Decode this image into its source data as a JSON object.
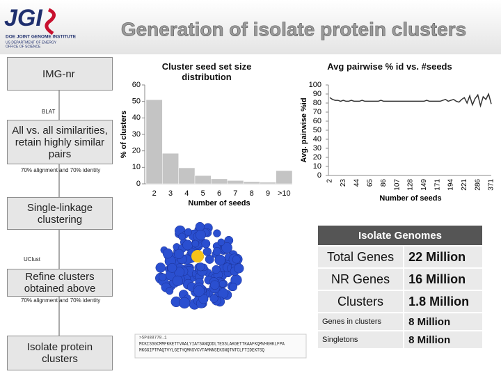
{
  "header": {
    "logo": "JGI",
    "org": "DOE JOINT GENOME INSTITUTE",
    "dept": "US DEPARTMENT OF ENERGY",
    "office": "OFFICE OF SCIENCE",
    "title": "Generation of isolate protein clusters"
  },
  "flow": {
    "input": "IMG-nr",
    "tool1": "BLAT",
    "step1": "All vs. all similarities, retain highly similar pairs",
    "params1": "70% alignment and 70% identity",
    "step2": "Single-linkage clustering",
    "tool2": "UClust",
    "step3": "Refine clusters obtained above",
    "params2": "70% alignment and 70% identity",
    "output": "Isolate protein clusters"
  },
  "chart_data": [
    {
      "type": "bar",
      "title": "Cluster seed set size distribution",
      "y_label": "% of clusters",
      "x_label": "Number of seeds",
      "categories": [
        "2",
        "3",
        "4",
        "5",
        "6",
        "7",
        "8",
        "9",
        ">10"
      ],
      "values": [
        51,
        18.5,
        9.7,
        5,
        3,
        2,
        1.3,
        1,
        8
      ],
      "color": "#c4c4c4",
      "ylim": [
        0,
        60
      ],
      "yticks": [
        0,
        10,
        20,
        30,
        40,
        50,
        60
      ]
    },
    {
      "type": "line",
      "title": "Avg pairwise % id vs. #seeds",
      "y_label": "Avg. pairwise %id",
      "x_label": "Number of seeds",
      "categories": [
        "2",
        null,
        null,
        null,
        null,
        "23",
        null,
        null,
        null,
        null,
        "44",
        null,
        null,
        null,
        null,
        "65",
        null,
        null,
        null,
        null,
        "86",
        null,
        null,
        null,
        null,
        "107",
        null,
        null,
        null,
        null,
        "128",
        null,
        null,
        null,
        null,
        "149",
        null,
        null,
        null,
        null,
        "171",
        null,
        null,
        null,
        null,
        "194",
        null,
        null,
        null,
        null,
        "221",
        null,
        null,
        null,
        null,
        "286",
        null,
        null,
        null,
        null,
        "371"
      ],
      "values": [
        86,
        84,
        83,
        83,
        82,
        83,
        82,
        82,
        83,
        82,
        82,
        82,
        83,
        82,
        82,
        82,
        82,
        82,
        82,
        83,
        82,
        82,
        82,
        82,
        82,
        82,
        82,
        82,
        82,
        82,
        82,
        82,
        82,
        82,
        82,
        82,
        83,
        82,
        82,
        82,
        82,
        82,
        83,
        84,
        82,
        83,
        84,
        82,
        81,
        84,
        86,
        80,
        88,
        78,
        85,
        89,
        77,
        87,
        84,
        90,
        79
      ],
      "color": "#333333",
      "ylim": [
        0,
        100
      ],
      "yticks": [
        0,
        10,
        20,
        30,
        40,
        50,
        60,
        70,
        80,
        90,
        100
      ]
    }
  ],
  "table": {
    "title": "Isolate Genomes",
    "rows": [
      [
        "Total Genes",
        "22 Million"
      ],
      [
        "NR Genes",
        "16 Million"
      ],
      [
        "Clusters",
        "1.8 Million"
      ],
      [
        "Genes in clusters",
        "8 Million"
      ],
      [
        "Singletons",
        "8 Million"
      ]
    ]
  },
  "sequence": [
    ">SP488778.1",
    "MCKISSGCMMFKKETTVAALYIATSANQDDLTESSLAKGETTKAAFKQMVHGHKLFPA",
    "MKGGIPTPAQTVYLGETYQMNSVCVTAMNNSEKSNQTNTCLFTIDEKTSQ"
  ]
}
